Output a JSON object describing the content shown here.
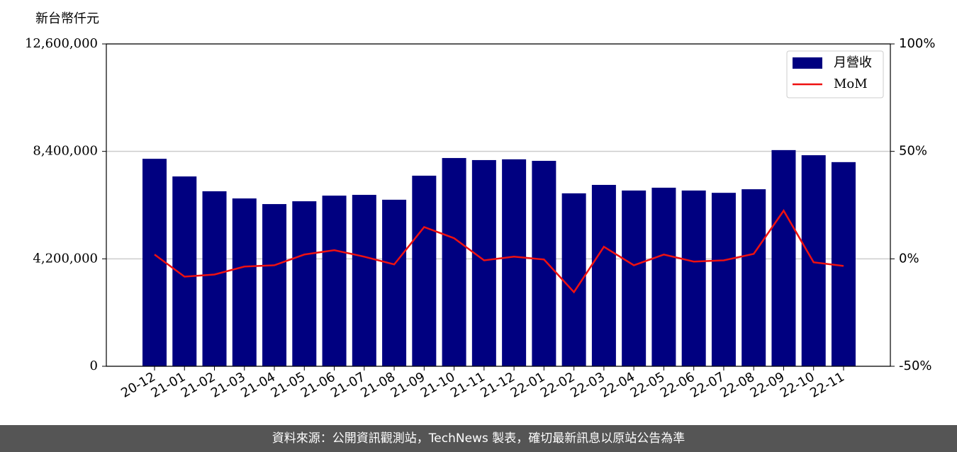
{
  "chart_data": {
    "type": "bar-line",
    "y_label": "新台幣仟元",
    "categories": [
      "20-12",
      "21-01",
      "21-02",
      "21-03",
      "21-04",
      "21-05",
      "21-06",
      "21-07",
      "21-08",
      "21-09",
      "21-10",
      "21-11",
      "21-12",
      "22-01",
      "22-02",
      "22-03",
      "22-04",
      "22-05",
      "22-06",
      "22-07",
      "22-08",
      "22-09",
      "22-10",
      "22-11"
    ],
    "series": [
      {
        "name": "月營收",
        "type": "bar",
        "color": "#000080",
        "values": [
          8110000,
          7420000,
          6840000,
          6560000,
          6340000,
          6450000,
          6670000,
          6700000,
          6510000,
          7450000,
          8140000,
          8060000,
          8090000,
          8030000,
          6760000,
          7090000,
          6870000,
          6980000,
          6870000,
          6780000,
          6920000,
          8450000,
          8250000,
          7980000
        ]
      },
      {
        "name": "MoM",
        "type": "line",
        "axis": "y2",
        "color": "#ee1111",
        "values": [
          2,
          -8.3,
          -7.3,
          -3.6,
          -3,
          2,
          4,
          1,
          -2.6,
          14.8,
          9.6,
          -0.7,
          1,
          -0.3,
          -15.5,
          5.6,
          -3,
          2,
          -1.3,
          -0.7,
          2.3,
          22.4,
          -1.6,
          -3.3
        ]
      }
    ],
    "ylim": [
      0,
      12600000
    ],
    "yticks": [
      {
        "value": 0,
        "label": "0"
      },
      {
        "value": 4200000,
        "label": "4,200,000"
      },
      {
        "value": 8400000,
        "label": "8,400,000"
      },
      {
        "value": 12600000,
        "label": "12,600,000"
      }
    ],
    "y2lim": [
      -50,
      100
    ],
    "y2ticks": [
      {
        "value": -50,
        "label": "-50%"
      },
      {
        "value": 0,
        "label": "0%"
      },
      {
        "value": 50,
        "label": "50%"
      },
      {
        "value": 100,
        "label": "100%"
      }
    ],
    "grid": true,
    "legend": "upper right"
  },
  "footer": "資料來源：公開資訊觀測站，TechNews 製表，確切最新訊息以原站公告為準"
}
